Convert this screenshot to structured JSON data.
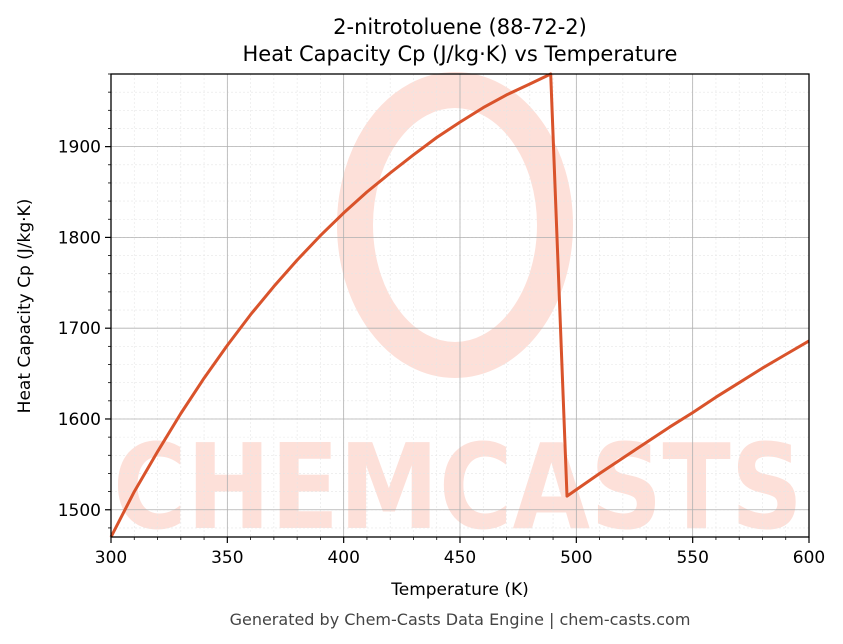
{
  "chart_data": {
    "type": "line",
    "title": "2-nitrotoluene (88-72-2)",
    "subtitle": "Heat Capacity Cp (J/kg·K) vs Temperature",
    "xlabel": "Temperature (K)",
    "ylabel": "Heat Capacity Cp (J/kg·K)",
    "xlim": [
      300,
      600
    ],
    "ylim": [
      1470,
      1980
    ],
    "xticks": [
      300,
      350,
      400,
      450,
      500,
      550,
      600
    ],
    "yticks": [
      1500,
      1600,
      1700,
      1800,
      1900
    ],
    "grid": true,
    "line_color": "#d9532b",
    "series": [
      {
        "x": [
          300,
          310,
          320,
          330,
          340,
          350,
          360,
          370,
          380,
          390,
          400,
          410,
          420,
          430,
          440,
          450,
          460,
          470,
          480,
          489,
          496,
          510,
          520,
          530,
          540,
          550,
          560,
          570,
          580,
          590,
          600
        ],
        "y": [
          1470,
          1520,
          1564,
          1606,
          1645,
          1681,
          1715,
          1746,
          1775,
          1802,
          1827,
          1850,
          1871,
          1891,
          1910,
          1927,
          1943,
          1957,
          1969,
          1980,
          1515,
          1540,
          1557,
          1574,
          1591,
          1607,
          1624,
          1640,
          1656,
          1671,
          1686
        ]
      }
    ]
  },
  "watermark": {
    "text": "CHEMCASTS",
    "color": "#fde0d9"
  },
  "footer": "Generated by Chem-Casts Data Engine | chem-casts.com"
}
